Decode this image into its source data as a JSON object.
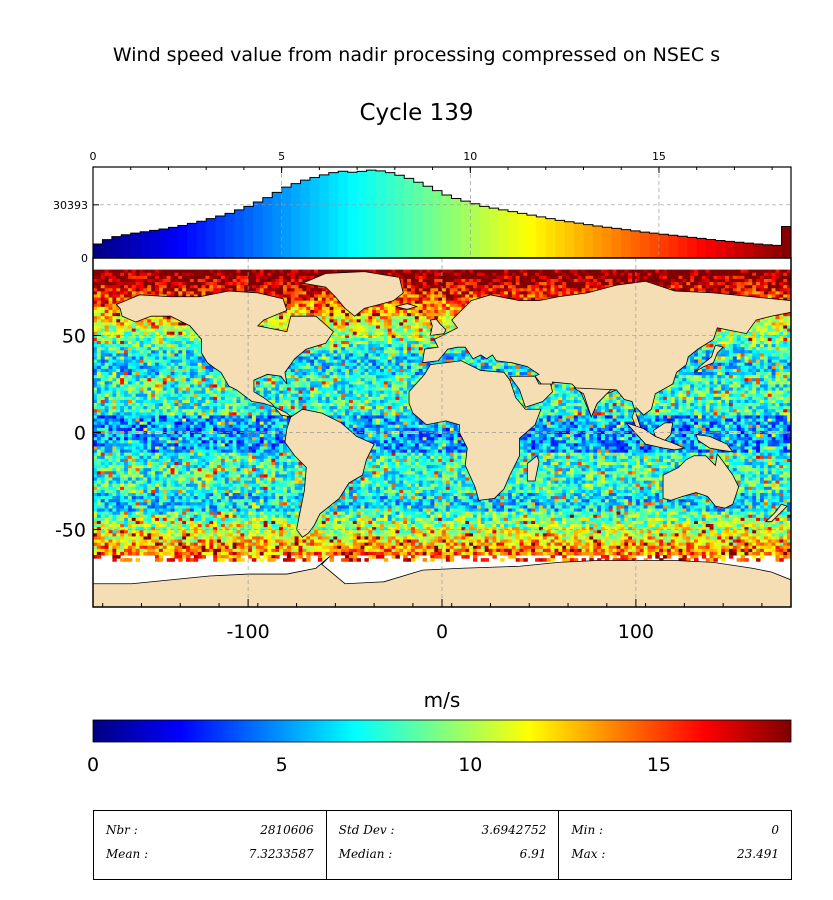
{
  "title": "Wind speed value from nadir processing compressed on NSEC s",
  "subtitle": "Cycle 139",
  "colorbar_label": "m/s",
  "colors": {
    "land": "#f5deb3",
    "frame": "#000000",
    "grid": "#999999"
  },
  "chart_data": [
    {
      "type": "bar",
      "role": "histogram",
      "x_ticks": [
        "0",
        "5",
        "10",
        "15"
      ],
      "x_range": [
        0,
        18.5
      ],
      "y_ticks": [
        "0",
        "30393"
      ],
      "y_range": [
        0,
        52000
      ],
      "bin_width": 0.25,
      "bin_starts": [
        0,
        0.25,
        0.5,
        0.75,
        1,
        1.25,
        1.5,
        1.75,
        2,
        2.25,
        2.5,
        2.75,
        3,
        3.25,
        3.5,
        3.75,
        4,
        4.25,
        4.5,
        4.75,
        5,
        5.25,
        5.5,
        5.75,
        6,
        6.25,
        6.5,
        6.75,
        7,
        7.25,
        7.5,
        7.75,
        8,
        8.25,
        8.5,
        8.75,
        9,
        9.25,
        9.5,
        9.75,
        10,
        10.25,
        10.5,
        10.75,
        11,
        11.25,
        11.5,
        11.75,
        12,
        12.25,
        12.5,
        12.75,
        13,
        13.25,
        13.5,
        13.75,
        14,
        14.25,
        14.5,
        14.75,
        15,
        15.25,
        15.5,
        15.75,
        16,
        16.25,
        16.5,
        16.75,
        17,
        17.25,
        17.5,
        17.75,
        18,
        18.25
      ],
      "values": [
        8000,
        10500,
        12200,
        13300,
        14200,
        15000,
        15800,
        16600,
        17500,
        18600,
        19800,
        21000,
        22500,
        24000,
        25500,
        27500,
        29500,
        32000,
        34500,
        37500,
        40500,
        42500,
        44500,
        46000,
        47500,
        48800,
        49600,
        49000,
        49500,
        50200,
        49800,
        48800,
        47300,
        45500,
        43300,
        41000,
        38500,
        36000,
        34000,
        32500,
        31000,
        29500,
        28500,
        27500,
        26500,
        25500,
        24500,
        23500,
        22500,
        21500,
        20700,
        19900,
        19100,
        18300,
        17600,
        16900,
        16200,
        15500,
        14800,
        14200,
        13600,
        13000,
        12400,
        11800,
        11200,
        10600,
        10000,
        9500,
        9000,
        8500,
        8000,
        7600,
        7200,
        18000
      ]
    },
    {
      "type": "heatmap",
      "role": "map",
      "x_ticks": [
        "-100",
        "0",
        "100"
      ],
      "x_values": [
        -100,
        0,
        100
      ],
      "x_range": [
        -180,
        180
      ],
      "y_ticks": [
        "50",
        "0",
        "-50"
      ],
      "y_values": [
        50,
        0,
        -50
      ],
      "y_range": [
        -90,
        90
      ],
      "colorscale": [
        "#00007f",
        "#0000ff",
        "#0080ff",
        "#00ffff",
        "#80ff80",
        "#ffff00",
        "#ff8000",
        "#ff0000",
        "#7f0000"
      ]
    },
    {
      "type": "colorbar",
      "ticks": [
        "0",
        "5",
        "10",
        "15"
      ],
      "range": [
        0,
        18.5
      ]
    }
  ],
  "stats": [
    [
      {
        "label": "Nbr :",
        "value": "2810606"
      },
      {
        "label": "Mean :",
        "value": "7.3233587"
      }
    ],
    [
      {
        "label": "Std Dev :",
        "value": "3.6942752"
      },
      {
        "label": "Median :",
        "value": "6.91"
      }
    ],
    [
      {
        "label": "Min :",
        "value": "0"
      },
      {
        "label": "Max :",
        "value": "23.491"
      }
    ]
  ]
}
